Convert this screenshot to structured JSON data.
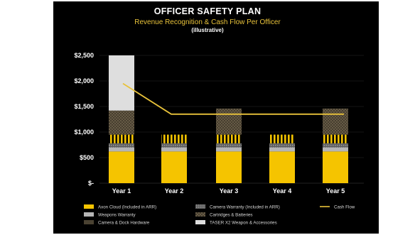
{
  "colors": {
    "background": "#000000",
    "title": "#ffffff",
    "subtitle": "#e8c23a",
    "axis_text": "#ffffff",
    "grid": "#2e2e2e"
  },
  "chart_data": {
    "type": "bar",
    "stacked": true,
    "title": "OFFICER SAFETY PLAN",
    "subtitle": "Revenue Recognition & Cash Flow Per Officer",
    "note": "(illustrative)",
    "categories": [
      "Year 1",
      "Year 2",
      "Year 3",
      "Year 4",
      "Year 5"
    ],
    "yticks": [
      "$2,500",
      "$2,000",
      "$1,500",
      "$1,000",
      "$500",
      "$-"
    ],
    "ylim": [
      0,
      2500
    ],
    "grid": true,
    "legend_position": "bottom",
    "series": [
      {
        "name": "Axon Cloud (Included in ARR)",
        "color": "#f5c400",
        "pattern": "solid",
        "values": [
          620,
          620,
          620,
          620,
          620
        ]
      },
      {
        "name": "Weapons Warranty",
        "color": "#b5b5b5",
        "pattern": "solid",
        "values": [
          80,
          80,
          80,
          80,
          80
        ]
      },
      {
        "name": "Camera Warranty (Included in ARR)",
        "color": "#777777",
        "pattern": "dotted",
        "values": [
          80,
          80,
          80,
          80,
          80
        ]
      },
      {
        "name": "Cartridges & Batteries",
        "color": "#f5c400",
        "pattern": "vstripe",
        "values": [
          170,
          170,
          170,
          170,
          170
        ]
      },
      {
        "name": "Camera & Dock Hardware",
        "color": "#5a5040",
        "pattern": "crosshatch",
        "values": [
          470,
          0,
          510,
          0,
          510
        ]
      },
      {
        "name": "TASER X2 Weapon & Accessories",
        "color": "#dedede",
        "pattern": "solid",
        "values": [
          1080,
          0,
          0,
          0,
          0
        ]
      }
    ],
    "line": {
      "name": "Cash Flow",
      "color": "#e8c23a",
      "values": [
        1950,
        1350,
        1350,
        1350,
        1350
      ]
    },
    "legend": [
      {
        "name": "Axon Cloud (Included in ARR)",
        "swatch": "solid-yellow"
      },
      {
        "name": "Camera Warranty (Included in ARR)",
        "swatch": "dotted-gray"
      },
      {
        "name": "Cash Flow",
        "swatch": "line-yellow"
      },
      {
        "name": "Weapons Warranty",
        "swatch": "solid-gray"
      },
      {
        "name": "Cartridges & Batteries",
        "swatch": "hatch-brown"
      },
      {
        "name": "Camera & Dock Hardware",
        "swatch": "crosshatch-dark"
      },
      {
        "name": "TASER X2 Weapon & Accessories",
        "swatch": "solid-light"
      }
    ]
  }
}
